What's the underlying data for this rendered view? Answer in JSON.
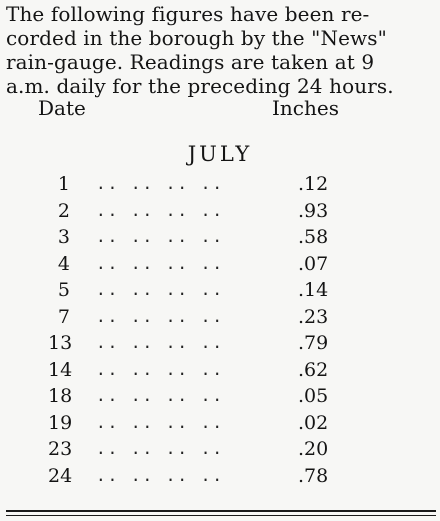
{
  "intro_lines": [
    "The following figures have been re-",
    "corded in the borough by the \"News\"",
    "rain-gauge. Readings are taken at 9",
    "a.m. daily for the preceding 24 hours."
  ],
  "headers": {
    "date": "Date",
    "inches": "Inches"
  },
  "month": "JULY",
  "leader": ".. .. .. ..",
  "readings": [
    {
      "date": "1",
      "inches": ".12"
    },
    {
      "date": "2",
      "inches": ".93"
    },
    {
      "date": "3",
      "inches": ".58"
    },
    {
      "date": "4",
      "inches": ".07"
    },
    {
      "date": "5",
      "inches": ".14"
    },
    {
      "date": "7",
      "inches": ".23"
    },
    {
      "date": "13",
      "inches": ".79"
    },
    {
      "date": "14",
      "inches": ".62"
    },
    {
      "date": "18",
      "inches": ".05"
    },
    {
      "date": "19",
      "inches": ".02"
    },
    {
      "date": "23",
      "inches": ".20"
    },
    {
      "date": "24",
      "inches": ".78"
    }
  ]
}
